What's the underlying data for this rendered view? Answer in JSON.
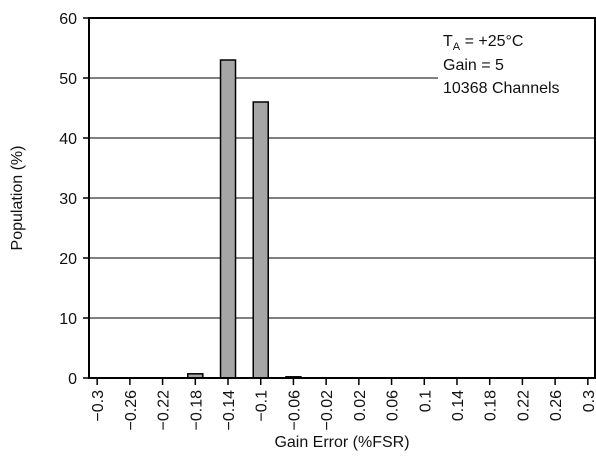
{
  "chart_data": {
    "type": "bar",
    "title": "",
    "xlabel": "Gain Error (%FSR)",
    "ylabel": "Population (%)",
    "xlim": [
      -0.31,
      0.31
    ],
    "ylim": [
      0,
      60
    ],
    "yticks": [
      "0",
      "10",
      "20",
      "30",
      "40",
      "50",
      "60"
    ],
    "xtick_labels": [
      "−0.3",
      "−0.26",
      "−0.22",
      "−0.18",
      "−0.14",
      "−0.1",
      "−0.06",
      "−0.02",
      "0.02",
      "0.06",
      "0.1",
      "0.14",
      "0.18",
      "0.22",
      "0.26",
      "0.3"
    ],
    "bin_centers": [
      -0.3,
      -0.26,
      -0.22,
      -0.18,
      -0.14,
      -0.1,
      -0.06,
      -0.02,
      0.02,
      0.06,
      0.1,
      0.14,
      0.18,
      0.22,
      0.26,
      0.3
    ],
    "values": [
      0,
      0,
      0,
      0.7,
      53,
      46,
      0.2,
      0,
      0,
      0,
      0,
      0,
      0,
      0,
      0,
      0
    ],
    "grid": "horizontal",
    "bar_color": "#a6a6a6",
    "annotation": {
      "line1_main": "T",
      "line1_sub": "A",
      "line1_rest": " = +25°C",
      "line2": "Gain = 5",
      "line3": "10368 Channels"
    }
  }
}
